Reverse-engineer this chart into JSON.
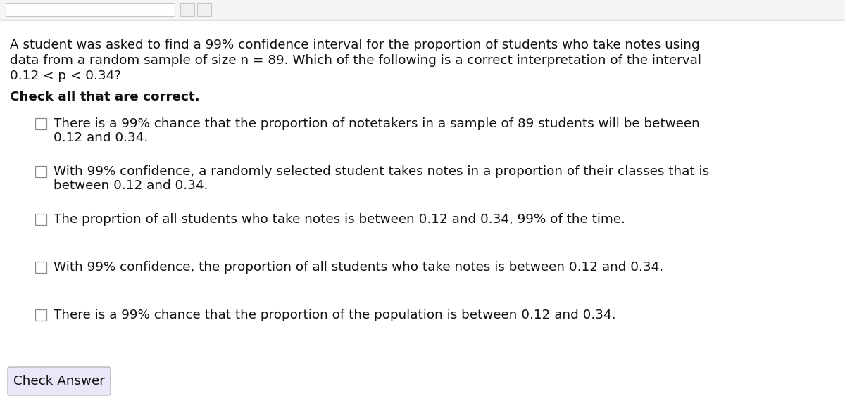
{
  "bg_color": "#ffffff",
  "border_color": "#c8c8c8",
  "top_bar_color": "#f0f0f0",
  "question_text_lines": [
    "A student was asked to find a 99% confidence interval for the proportion of students who take notes using",
    "data from a random sample of size n = 89. Which of the following is a correct interpretation of the interval",
    "0.12 < p < 0.34?"
  ],
  "instruction_text": "Check all that are correct.",
  "options": [
    [
      "There is a 99% chance that the proportion of notetakers in a sample of 89 students will be between",
      "0.12 and 0.34."
    ],
    [
      "With 99% confidence, a randomly selected student takes notes in a proportion of their classes that is",
      "between 0.12 and 0.34."
    ],
    [
      "The proprtion of all students who take notes is between 0.12 and 0.34, 99% of the time."
    ],
    [
      "With 99% confidence, the proportion of all students who take notes is between 0.12 and 0.34."
    ],
    [
      "There is a 99% chance that the proportion of the population is between 0.12 and 0.34."
    ]
  ],
  "button_text": "Check Answer",
  "button_bg": "#e8e8f8",
  "button_border": "#aaaaaa",
  "text_color": "#111111",
  "font_size": 13.2,
  "checkbox_color": "#ffffff",
  "checkbox_border": "#888888",
  "nav_input_bg": "#ffffff",
  "nav_btn_bg": "#f0f0f0"
}
